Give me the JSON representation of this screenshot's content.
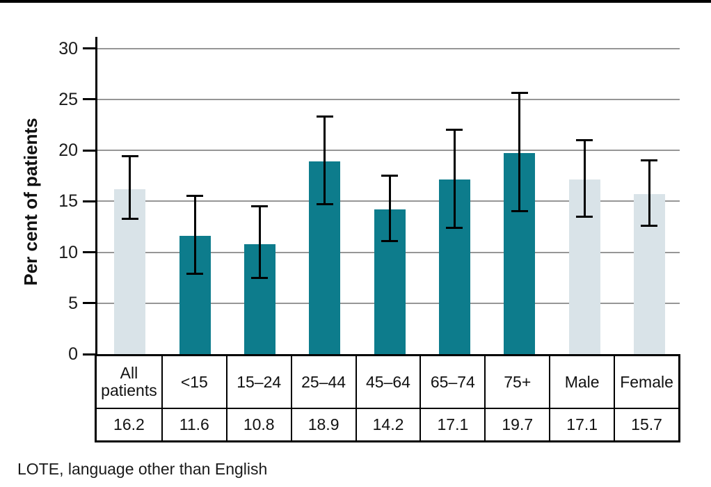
{
  "page": {
    "footnote": "LOTE, language other than English"
  },
  "chart_data": {
    "type": "bar",
    "title": "",
    "xlabel": "",
    "ylabel": "Per cent of patients",
    "ylim": [
      0,
      30
    ],
    "yticks": [
      0,
      5,
      10,
      15,
      20,
      25,
      30
    ],
    "grid": true,
    "legend_position": "none",
    "categories": [
      "All patients",
      "<15",
      "15–24",
      "25–44",
      "45–64",
      "65–74",
      "75+",
      "Male",
      "Female"
    ],
    "values": [
      16.2,
      11.6,
      10.8,
      18.9,
      14.2,
      17.1,
      19.7,
      17.1,
      15.7
    ],
    "value_labels": [
      "16.2",
      "11.6",
      "10.8",
      "18.9",
      "14.2",
      "17.1",
      "19.7",
      "17.1",
      "15.7"
    ],
    "error_low": [
      13.3,
      7.9,
      7.5,
      14.7,
      11.1,
      12.4,
      14.0,
      13.5,
      12.6
    ],
    "error_high": [
      19.4,
      15.5,
      14.5,
      23.3,
      17.5,
      22.0,
      25.6,
      21.0,
      19.0
    ],
    "bar_styles": [
      "light",
      "teal",
      "teal",
      "teal",
      "teal",
      "teal",
      "teal",
      "light",
      "light"
    ],
    "colors": {
      "teal": "#0d7c8c",
      "light": "#d9e3e8",
      "gridline": "#969696",
      "axis": "#000000",
      "error_bar": "#000000"
    }
  }
}
